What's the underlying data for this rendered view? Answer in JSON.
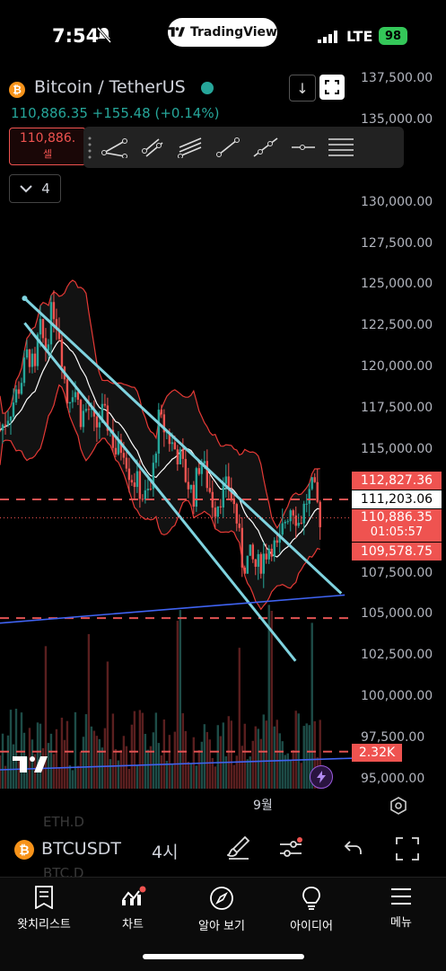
{
  "status_bar": {
    "time": "7:54",
    "network": "LTE",
    "battery": "98"
  },
  "brand": {
    "name": "TradingView"
  },
  "header": {
    "symbol_title": "Bitcoin / TetherUS",
    "last_price": "110,886.35",
    "change": "+155.48",
    "change_pct": "(+0.14%)",
    "sell_price": "110,886.",
    "sell_label": "셀",
    "indicator_count": "4"
  },
  "y_axis": {
    "ticks": [
      "137,500.00",
      "135,000.00",
      "130,000.00",
      "127,500.00",
      "125,000.00",
      "122,500.00",
      "120,000.00",
      "117,500.00",
      "115,000.00",
      "107,500.00",
      "105,000.00",
      "102,500.00",
      "100,000.00",
      "97,500.00",
      "95,000.00"
    ],
    "badges": {
      "upper_band": "112,827.36",
      "middle_band": "111,203.06",
      "last": "110,886.35",
      "countdown": "01:05:57",
      "lower_band": "109,578.75",
      "volume": "2.32K"
    }
  },
  "x_axis": {
    "label": "9월"
  },
  "symbol_bar": {
    "symbol": "BTCUSDT",
    "interval": "4시",
    "ghost_top": "ETH.D",
    "ghost_bottom": "BTC.D"
  },
  "tabs": [
    {
      "label": "왓치리스트",
      "icon": "watchlist-icon"
    },
    {
      "label": "차트",
      "icon": "chart-icon"
    },
    {
      "label": "알아 보기",
      "icon": "compass-icon"
    },
    {
      "label": "아이디어",
      "icon": "lightbulb-icon"
    },
    {
      "label": "메뉴",
      "icon": "menu-icon"
    }
  ],
  "colors": {
    "up": "#26a69a",
    "down": "#ef5350",
    "channel": "#7fd3df",
    "support": "#3f63f2",
    "basis": "#ffffff"
  },
  "chart_data": {
    "type": "candlestick",
    "symbol": "BTCUSDT",
    "interval": "4h",
    "ylim": [
      95000,
      137500
    ],
    "last_price": 110886.35,
    "bollinger": {
      "upper": 112827.36,
      "basis": 111203.06,
      "lower": 109578.75
    },
    "horizontal_levels_dashed": [
      112000,
      104800,
      96700
    ],
    "channel_top": [
      [
        0.07,
        124200
      ],
      [
        0.97,
        106300
      ]
    ],
    "channel_bottom": [
      [
        0.07,
        122700
      ],
      [
        0.84,
        102200
      ]
    ],
    "support_line": [
      [
        0.0,
        104500
      ],
      [
        0.98,
        106200
      ]
    ],
    "volume_support": [
      [
        0.0,
        95600
      ],
      [
        1.0,
        96300
      ]
    ],
    "close_path": [
      [
        0.0,
        116200
      ],
      [
        0.03,
        117500
      ],
      [
        0.06,
        119200
      ],
      [
        0.08,
        121000
      ],
      [
        0.1,
        119500
      ],
      [
        0.11,
        122500
      ],
      [
        0.13,
        121200
      ],
      [
        0.15,
        123800
      ],
      [
        0.17,
        122000
      ],
      [
        0.19,
        118000
      ],
      [
        0.21,
        119000
      ],
      [
        0.23,
        117000
      ],
      [
        0.25,
        117600
      ],
      [
        0.27,
        116200
      ],
      [
        0.29,
        117200
      ],
      [
        0.31,
        116500
      ],
      [
        0.33,
        114800
      ],
      [
        0.35,
        115400
      ],
      [
        0.37,
        113500
      ],
      [
        0.39,
        113000
      ],
      [
        0.41,
        112000
      ],
      [
        0.43,
        112600
      ],
      [
        0.45,
        116800
      ],
      [
        0.47,
        116200
      ],
      [
        0.49,
        115300
      ],
      [
        0.51,
        114600
      ],
      [
        0.53,
        113200
      ],
      [
        0.55,
        112200
      ],
      [
        0.57,
        114600
      ],
      [
        0.59,
        113000
      ],
      [
        0.61,
        111500
      ],
      [
        0.63,
        112400
      ],
      [
        0.65,
        112800
      ],
      [
        0.67,
        111200
      ],
      [
        0.69,
        108000
      ],
      [
        0.71,
        108500
      ],
      [
        0.73,
        107800
      ],
      [
        0.75,
        108600
      ],
      [
        0.77,
        109400
      ],
      [
        0.79,
        108800
      ],
      [
        0.81,
        110800
      ],
      [
        0.83,
        111800
      ],
      [
        0.85,
        110500
      ],
      [
        0.87,
        111900
      ],
      [
        0.89,
        112700
      ],
      [
        0.91,
        110900
      ]
    ]
  }
}
